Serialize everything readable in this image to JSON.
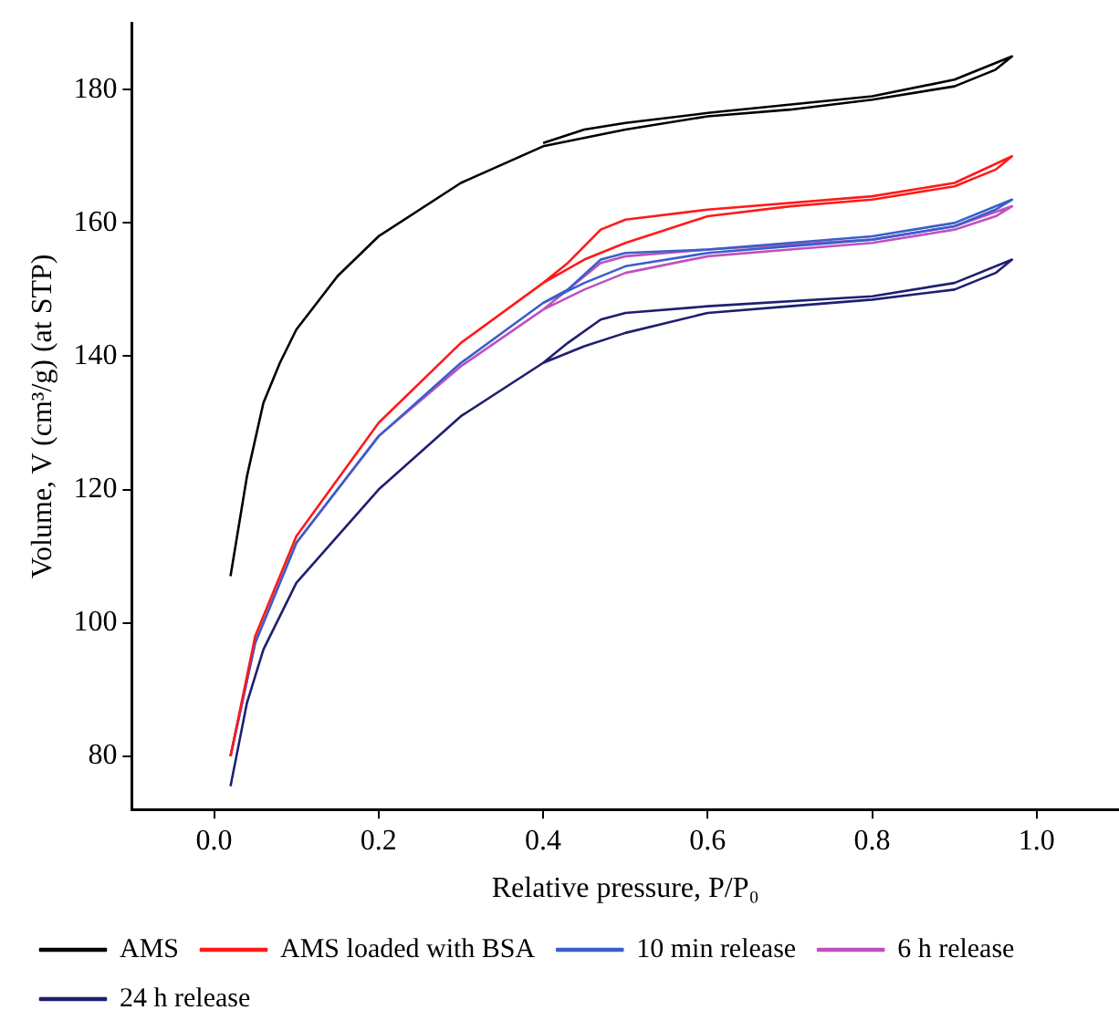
{
  "chart_data": {
    "type": "line",
    "xlabel": "Relative pressure, P/P₀",
    "ylabel": "Volume, V (cm³/g) (at STP)",
    "xlim": [
      -0.1,
      1.1
    ],
    "xticks": [
      {
        "value": 0,
        "label": "0.0"
      },
      0.2,
      0.4,
      0.6,
      0.8,
      {
        "value": 1,
        "label": "1.0"
      }
    ],
    "ylim": [
      72,
      190
    ],
    "yticks": [
      80,
      100,
      120,
      140,
      160,
      180
    ],
    "grid": false,
    "legend": "bottom",
    "marker": "none",
    "line_style": "solid",
    "series": [
      {
        "name": "AMS",
        "color": "#000000",
        "x": [
          0.02,
          0.04,
          0.06,
          0.08,
          0.1,
          0.15,
          0.2,
          0.3,
          0.4,
          0.5,
          0.6,
          0.7,
          0.8,
          0.9,
          0.95,
          0.97,
          0.9,
          0.8,
          0.6,
          0.5,
          0.45,
          0.4
        ],
        "values": [
          107,
          122,
          133,
          139,
          144,
          152,
          158,
          166,
          171.5,
          174,
          176,
          177,
          178.5,
          180.5,
          183,
          185,
          181.5,
          179,
          176.5,
          175,
          174,
          172
        ]
      },
      {
        "name": "AMS loaded with BSA",
        "color": "#ff1a1a",
        "x": [
          0.02,
          0.05,
          0.08,
          0.1,
          0.2,
          0.3,
          0.4,
          0.45,
          0.5,
          0.6,
          0.7,
          0.8,
          0.9,
          0.95,
          0.97,
          0.9,
          0.8,
          0.6,
          0.5,
          0.47,
          0.43,
          0.4
        ],
        "values": [
          80,
          98,
          107,
          113,
          130,
          142,
          151,
          154.5,
          157,
          161,
          162.5,
          163.5,
          165.5,
          168,
          170,
          166,
          164,
          162,
          160.5,
          159,
          154,
          151
        ]
      },
      {
        "name": "10 min release",
        "color": "#3a5fc8",
        "x": [
          0.02,
          0.05,
          0.1,
          0.2,
          0.3,
          0.4,
          0.45,
          0.5,
          0.6,
          0.7,
          0.8,
          0.9,
          0.95,
          0.97,
          0.9,
          0.8,
          0.6,
          0.5,
          0.47,
          0.43,
          0.4
        ],
        "values": [
          80,
          97,
          112,
          128,
          139,
          148,
          151,
          153.5,
          155.5,
          156.5,
          157.5,
          159.5,
          162,
          163.5,
          160,
          158,
          156,
          155.5,
          154.5,
          150,
          148
        ]
      },
      {
        "name": "6 h release",
        "color": "#c050c0",
        "x": [
          0.02,
          0.05,
          0.1,
          0.2,
          0.3,
          0.4,
          0.45,
          0.5,
          0.6,
          0.7,
          0.8,
          0.9,
          0.95,
          0.97,
          0.9,
          0.8,
          0.6,
          0.5,
          0.47,
          0.43,
          0.4
        ],
        "values": [
          80,
          97,
          112,
          128,
          138.5,
          147,
          150,
          152.5,
          155,
          156,
          157,
          159,
          161,
          162.5,
          159.5,
          157.5,
          156,
          155,
          154,
          150,
          147
        ]
      },
      {
        "name": "24 h release",
        "color": "#1f1f70",
        "x": [
          0.02,
          0.04,
          0.06,
          0.1,
          0.2,
          0.3,
          0.4,
          0.45,
          0.5,
          0.6,
          0.7,
          0.8,
          0.9,
          0.95,
          0.97,
          0.9,
          0.8,
          0.6,
          0.5,
          0.47,
          0.43,
          0.4
        ],
        "values": [
          75.5,
          88,
          96,
          106,
          120,
          131,
          139,
          141.5,
          143.5,
          146.5,
          147.5,
          148.5,
          150,
          152.5,
          154.5,
          151,
          149,
          147.5,
          146.5,
          145.5,
          142,
          139
        ]
      }
    ]
  }
}
